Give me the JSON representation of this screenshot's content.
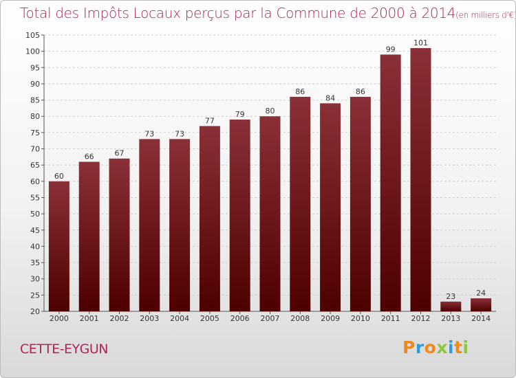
{
  "header": {
    "title": "Total des Impôts Locaux perçus par la Commune de 2000 à 2014",
    "unit": "(en milliers d'€)"
  },
  "commune": "CETTE-EYGUN",
  "logo": {
    "letters": [
      "P",
      "r",
      "o",
      "x",
      "i",
      "t",
      "i"
    ],
    "colors": [
      "#f08a1c",
      "#2a9fd8",
      "#f08a1c",
      "#8dc63f",
      "#2a9fd8",
      "#f08a1c",
      "#8dc63f"
    ]
  },
  "chart_data": {
    "type": "bar",
    "categories": [
      "2000",
      "2001",
      "2002",
      "2003",
      "2004",
      "2005",
      "2006",
      "2007",
      "2008",
      "2009",
      "2010",
      "2011",
      "2012",
      "2013",
      "2014"
    ],
    "values": [
      60,
      66,
      67,
      73,
      73,
      77,
      79,
      80,
      86,
      84,
      86,
      99,
      101,
      23,
      24
    ],
    "ylim": [
      20,
      105
    ],
    "yticks": [
      20,
      25,
      30,
      35,
      40,
      45,
      50,
      55,
      60,
      65,
      70,
      75,
      80,
      85,
      90,
      95,
      100,
      105
    ],
    "grid": true,
    "colors": {
      "bar_top": "#8a3038",
      "bar_bottom": "#4e0000",
      "grid": "#cfcfcf"
    }
  }
}
